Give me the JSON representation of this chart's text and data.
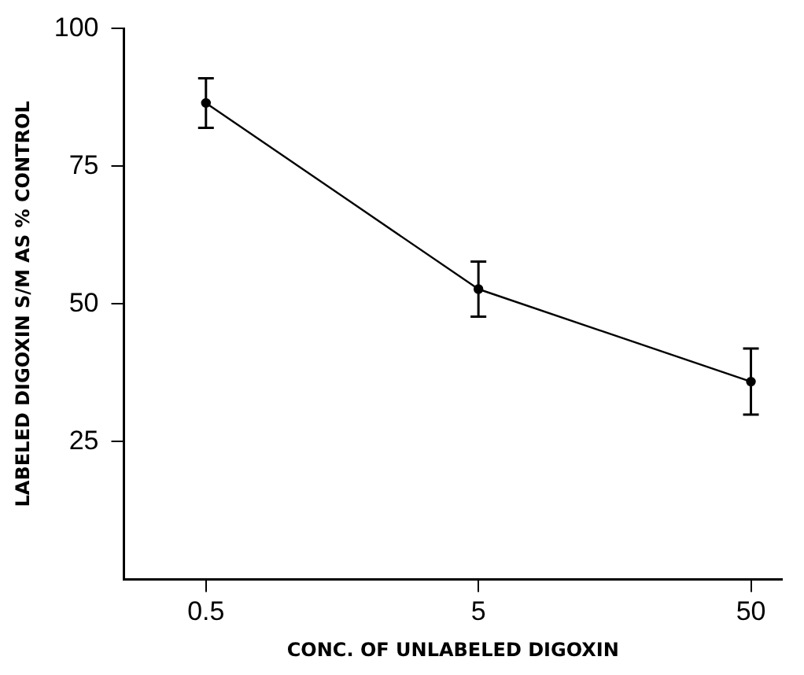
{
  "chart_data": {
    "type": "line",
    "xlabel": "CONC. OF UNLABELED DIGOXIN",
    "ylabel": "LABELED DIGOXIN S/M AS % CONTROL",
    "x": [
      0.5,
      5,
      50
    ],
    "series": [
      {
        "color": "#000000",
        "values": [
          86.5,
          52.7,
          35.9
        ],
        "errors": [
          4.5,
          5,
          6
        ]
      }
    ],
    "log": "x",
    "xlim": [
      0.25,
      65
    ],
    "xticks": [
      {
        "value": 0.5,
        "label": "0.5"
      },
      5,
      50
    ],
    "ylim": [
      0,
      100
    ],
    "yticks": [
      25,
      50,
      75,
      100
    ],
    "grid": false,
    "legend": false,
    "marker": "circle",
    "line_style": "solid"
  }
}
